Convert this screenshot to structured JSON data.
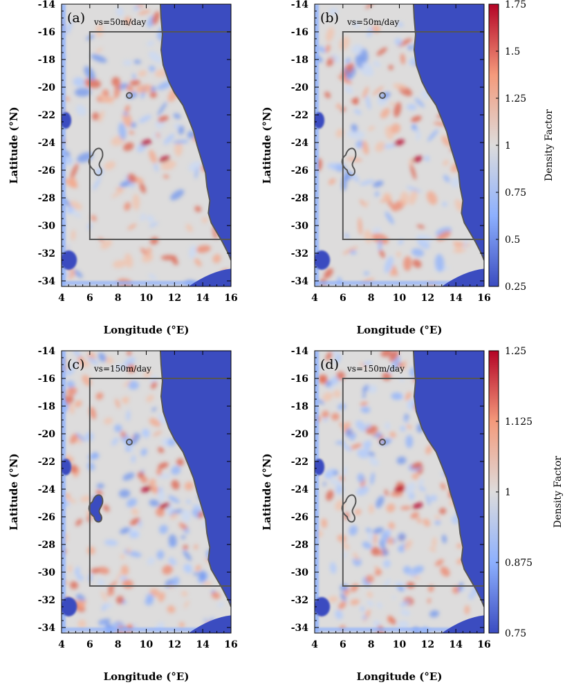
{
  "chart_data": [
    {
      "type": "heatmap",
      "panel_label": "(a)",
      "annotation": "vs=50m/day",
      "xlabel": "Longitude (°E)",
      "ylabel": "Latitude (°N)",
      "xlim": [
        4,
        16
      ],
      "ylim": [
        -34.4,
        -14
      ],
      "xticks": [
        "4",
        "6",
        "8",
        "10",
        "12",
        "14",
        "16"
      ],
      "yticks": [
        "-14",
        "-16",
        "-18",
        "-20",
        "-22",
        "-24",
        "-26",
        "-28",
        "-30",
        "-32",
        "-34"
      ],
      "region_box": {
        "lon": [
          6,
          16
        ],
        "lat": [
          -31,
          -16
        ]
      },
      "colorbar": null
    },
    {
      "type": "heatmap",
      "panel_label": "(b)",
      "annotation": "vs=50m/day",
      "xlabel": "Longitude (°E)",
      "ylabel": "Latitude (°N)",
      "xlim": [
        4,
        16
      ],
      "ylim": [
        -34.4,
        -14
      ],
      "xticks": [
        "4",
        "6",
        "8",
        "10",
        "12",
        "14",
        "16"
      ],
      "yticks": [
        "-14",
        "-16",
        "-18",
        "-20",
        "-22",
        "-24",
        "-26",
        "-28",
        "-30",
        "-32",
        "-34"
      ],
      "region_box": {
        "lon": [
          6,
          16
        ],
        "lat": [
          -31,
          -16
        ]
      },
      "colorbar": {
        "label": "Density Factor",
        "min": 0.25,
        "max": 1.75,
        "ticks": [
          "1.75",
          "1.5",
          "1.25",
          "1",
          "0.75",
          "0.5",
          "0.25"
        ]
      }
    },
    {
      "type": "heatmap",
      "panel_label": "(c)",
      "annotation": "vs=150m/day",
      "xlabel": "Longitude (°E)",
      "ylabel": "Latitude (°N)",
      "xlim": [
        4,
        16
      ],
      "ylim": [
        -34.4,
        -14
      ],
      "xticks": [
        "4",
        "6",
        "8",
        "10",
        "12",
        "14",
        "16"
      ],
      "yticks": [
        "-14",
        "-16",
        "-18",
        "-20",
        "-22",
        "-24",
        "-26",
        "-28",
        "-30",
        "-32",
        "-34"
      ],
      "region_box": {
        "lon": [
          6,
          16
        ],
        "lat": [
          -31,
          -16
        ]
      },
      "colorbar": null
    },
    {
      "type": "heatmap",
      "panel_label": "(d)",
      "annotation": "vs=150m/day",
      "xlabel": "Longitude (°E)",
      "ylabel": "Latitude (°N)",
      "xlim": [
        4,
        16
      ],
      "ylim": [
        -34.4,
        -14
      ],
      "xticks": [
        "4",
        "6",
        "8",
        "10",
        "12",
        "14",
        "16"
      ],
      "yticks": [
        "-14",
        "-16",
        "-18",
        "-20",
        "-22",
        "-24",
        "-26",
        "-28",
        "-30",
        "-32",
        "-34"
      ],
      "region_box": {
        "lon": [
          6,
          16
        ],
        "lat": [
          -31,
          -16
        ]
      },
      "colorbar": {
        "label": "Density Factor",
        "min": 0.75,
        "max": 1.25,
        "ticks": [
          "1.25",
          "1.125",
          "1",
          "0.875",
          "0.75"
        ]
      }
    }
  ],
  "colors": {
    "land": "#3b4cc0",
    "neutral": "#dddcdc",
    "warm": "#b40426",
    "cool": "#3b4cc0",
    "outline": "#555555"
  }
}
